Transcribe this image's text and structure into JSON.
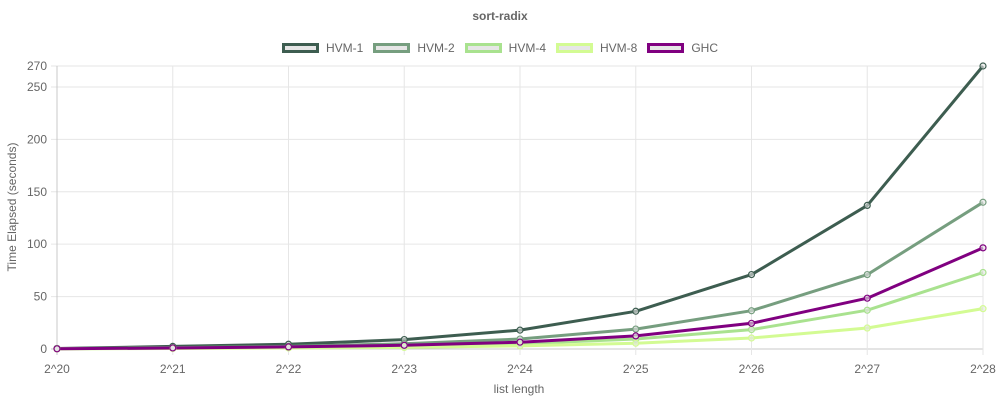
{
  "chart_data": {
    "type": "line",
    "title": "sort-radix",
    "xlabel": "list length",
    "ylabel": "Time Elapsed (seconds)",
    "categories": [
      "2^20",
      "2^21",
      "2^22",
      "2^23",
      "2^24",
      "2^25",
      "2^26",
      "2^27",
      "2^28"
    ],
    "y_ticks": [
      "0",
      "50",
      "100",
      "150",
      "200",
      "250",
      "270"
    ],
    "y_tick_values": [
      0,
      50,
      100,
      150,
      200,
      250,
      270
    ],
    "ylim": [
      0,
      270
    ],
    "grid": true,
    "legend_position": "top-center",
    "series": [
      {
        "name": "HVM-1",
        "color": "#3d5d50",
        "values": [
          0.5,
          2.5,
          4.5,
          9,
          18,
          36,
          71,
          137,
          270
        ]
      },
      {
        "name": "HVM-2",
        "color": "#769e7f",
        "values": [
          0.3,
          1.3,
          2.5,
          5,
          9.5,
          19,
          36.5,
          71,
          140
        ]
      },
      {
        "name": "HVM-4",
        "color": "#a9e28f",
        "values": [
          0.2,
          0.8,
          1.5,
          2.5,
          5,
          9.5,
          18.5,
          37,
          73
        ]
      },
      {
        "name": "HVM-8",
        "color": "#d3fb93",
        "values": [
          0.1,
          0.5,
          1,
          1.5,
          3,
          5.5,
          10.5,
          20,
          38.5
        ]
      },
      {
        "name": "GHC",
        "color": "#800080",
        "values": [
          0.2,
          1,
          2,
          3.5,
          6.5,
          12.5,
          24.5,
          48.5,
          96.5
        ]
      }
    ]
  }
}
